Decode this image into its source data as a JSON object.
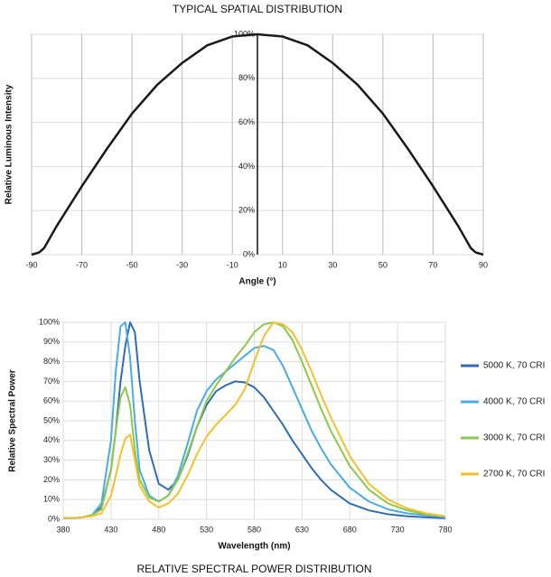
{
  "chart_data": [
    {
      "type": "line",
      "title": "TYPICAL SPATIAL DISTRIBUTION",
      "x_label": "Angle (°)",
      "y_label": "Relative Luminous Intensity",
      "x": [
        -90,
        -87,
        -85,
        -80,
        -75,
        -70,
        -60,
        -50,
        -40,
        -30,
        -20,
        -10,
        0,
        10,
        20,
        30,
        40,
        50,
        60,
        70,
        75,
        80,
        85,
        87,
        90
      ],
      "values": [
        0,
        1,
        3,
        13,
        22,
        31,
        48,
        64,
        77,
        87,
        95,
        99,
        100,
        99,
        95,
        87,
        77,
        64,
        48,
        31,
        22,
        13,
        3,
        1,
        0
      ],
      "color": "#1a1a1a",
      "xlim": [
        -90,
        90
      ],
      "xticks": [
        -90,
        -70,
        -50,
        -30,
        -10,
        10,
        30,
        50,
        70,
        90
      ],
      "ylim": [
        0,
        100
      ],
      "yticks": [
        {
          "value": 0,
          "label": "0%"
        },
        {
          "value": 20,
          "label": "20%"
        },
        {
          "value": 40,
          "label": "40%"
        },
        {
          "value": 60,
          "label": "60%"
        },
        {
          "value": 80,
          "label": "80%"
        },
        {
          "value": 100,
          "label": "100%"
        }
      ],
      "grid": true
    },
    {
      "type": "line",
      "title": "RELATIVE SPECTRAL POWER DISTRIBUTION",
      "x_label": "Wavelength (nm)",
      "y_label": "Relative Spectral Power",
      "x": [
        380,
        390,
        400,
        410,
        420,
        430,
        435,
        440,
        445,
        450,
        455,
        460,
        470,
        480,
        490,
        500,
        510,
        520,
        530,
        540,
        550,
        560,
        570,
        580,
        590,
        600,
        610,
        620,
        630,
        640,
        650,
        660,
        680,
        700,
        720,
        740,
        760,
        780
      ],
      "series": [
        {
          "name": "5000 K, 70 CRI",
          "color": "#2e6db4",
          "values": [
            0.5,
            0.5,
            1,
            2,
            6,
            25,
            45,
            70,
            88,
            100,
            95,
            70,
            35,
            18,
            15,
            20,
            32,
            47,
            58,
            65,
            68,
            70,
            69.5,
            67,
            62,
            55,
            48,
            40,
            33,
            26,
            20,
            15,
            8,
            4.5,
            2.5,
            1.5,
            1,
            0.5
          ]
        },
        {
          "name": "4000 K, 70 CRI",
          "color": "#4aace0",
          "values": [
            0.5,
            0.5,
            1,
            2,
            8,
            40,
            75,
            98,
            100,
            82,
            50,
            25,
            12,
            9,
            12,
            22,
            38,
            55,
            65,
            71,
            75,
            79,
            83,
            87,
            88,
            86,
            78,
            67,
            56,
            45,
            36,
            28,
            16,
            9,
            5,
            3,
            2,
            1
          ]
        },
        {
          "name": "3000 K, 70 CRI",
          "color": "#8cc84b",
          "values": [
            0.5,
            0.5,
            1,
            2,
            5,
            25,
            45,
            62,
            67,
            58,
            35,
            20,
            11,
            9,
            12,
            20,
            33,
            47,
            60,
            68,
            75,
            82,
            88,
            95,
            99,
            100,
            98,
            91,
            80,
            68,
            56,
            45,
            27,
            15,
            8,
            4.5,
            2.5,
            1.5
          ]
        },
        {
          "name": "2700 K, 70 CRI",
          "color": "#f2c12e",
          "values": [
            0.5,
            0.5,
            1,
            1.5,
            3,
            12,
            22,
            33,
            41,
            43,
            30,
            17,
            9,
            6,
            8,
            13,
            22,
            33,
            42,
            48,
            53,
            58,
            66,
            80,
            93,
            100,
            99,
            95,
            86,
            75,
            63,
            52,
            32,
            18,
            10,
            5.5,
            3,
            1.5
          ]
        }
      ],
      "xlim": [
        380,
        780
      ],
      "xticks": [
        380,
        430,
        480,
        530,
        580,
        630,
        680,
        730,
        780
      ],
      "ylim": [
        0,
        100
      ],
      "yticks": [
        {
          "value": 0,
          "label": "0%"
        },
        {
          "value": 10,
          "label": "10%"
        },
        {
          "value": 20,
          "label": "20%"
        },
        {
          "value": 30,
          "label": "30%"
        },
        {
          "value": 40,
          "label": "40%"
        },
        {
          "value": 50,
          "label": "50%"
        },
        {
          "value": 60,
          "label": "60%"
        },
        {
          "value": 70,
          "label": "70%"
        },
        {
          "value": 80,
          "label": "80%"
        },
        {
          "value": 90,
          "label": "90%"
        },
        {
          "value": 100,
          "label": "100%"
        }
      ],
      "grid": true,
      "legend": "right"
    }
  ]
}
